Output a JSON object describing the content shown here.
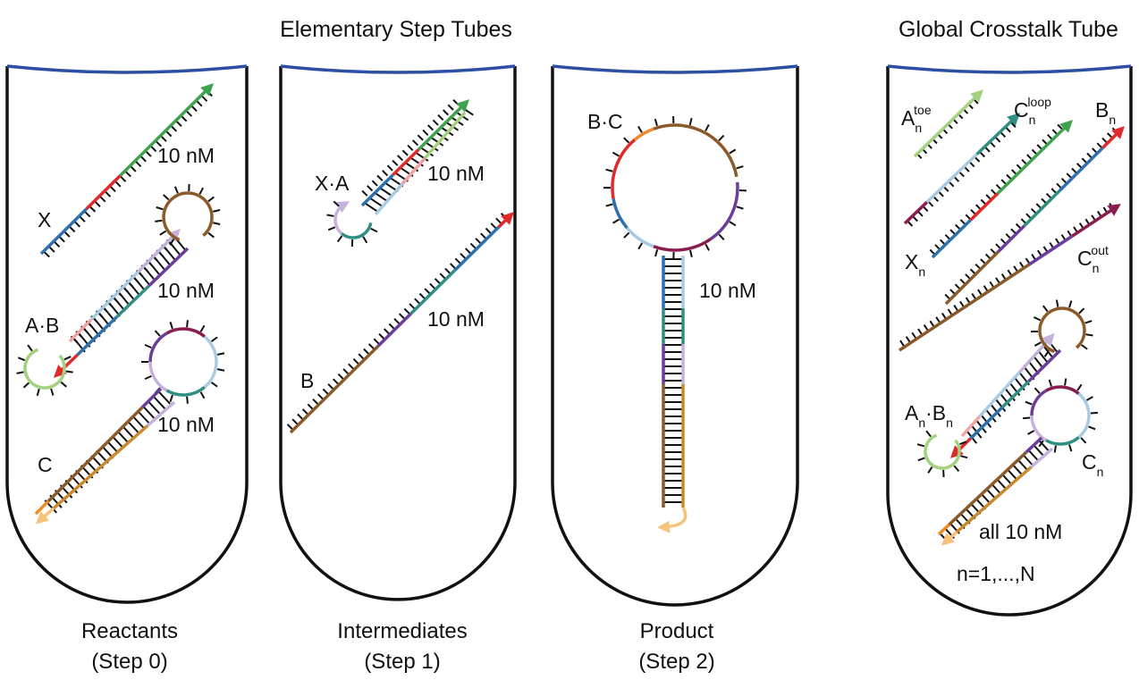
{
  "headers": {
    "elementary": "Elementary Step Tubes",
    "global": "Global Crosstalk Tube"
  },
  "captions": {
    "reactants": [
      "Reactants",
      "(Step 0)"
    ],
    "intermediates": [
      "Intermediates",
      "(Step 1)"
    ],
    "product": [
      "Product",
      "(Step 2)"
    ]
  },
  "species": {
    "X": "X",
    "AB": "A·B",
    "C": "C",
    "XA": "X·A",
    "B": "B",
    "BC": "B·C"
  },
  "concentrations": {
    "X": "10 nM",
    "AB": "10 nM",
    "C": "10 nM",
    "XA": "10 nM",
    "B": "10 nM",
    "BC": "10 nM"
  },
  "global_tube": {
    "A_toe": {
      "base": "A",
      "sub": "n",
      "sup": "toe"
    },
    "C_loop": {
      "base": "C",
      "sub": "n",
      "sup": "loop"
    },
    "B_n": {
      "base": "B",
      "sub": "n"
    },
    "X_n": {
      "base": "X",
      "sub": "n"
    },
    "C_out": {
      "base": "C",
      "sub": "n",
      "sup": "out"
    },
    "AnBn": {
      "a": "A",
      "sub1": "n",
      "dot": "·B",
      "sub2": "n"
    },
    "C_n": {
      "base": "C",
      "sub": "n"
    },
    "all_conc": "all 10 nM",
    "range": "n=1,...,N"
  },
  "colors": {
    "tube_outline": "#111111",
    "liquid_line": "#2c4fa3",
    "blue": "#2e6fae",
    "red": "#e02a2a",
    "green": "#3fa34d",
    "lightgreen": "#a3d17f",
    "pink": "#f2a3a3",
    "lightblue": "#a8cbe3",
    "brown": "#8b5a2b",
    "purple": "#6a3d9a",
    "lavender": "#c5b2dc",
    "teal": "#2f8f83",
    "maroon": "#8a1d4f",
    "orange": "#f08a24",
    "tan": "#c98a2f",
    "peach": "#f7c27a"
  }
}
